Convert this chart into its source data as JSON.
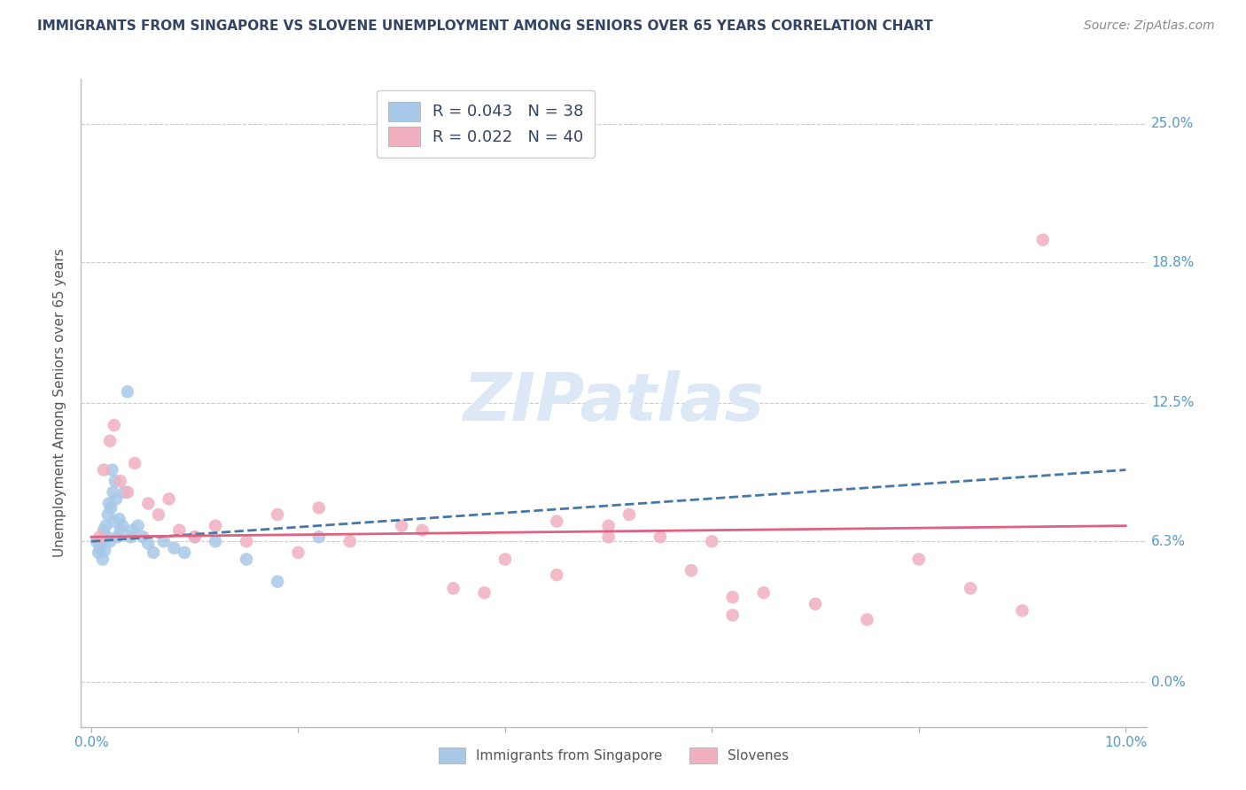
{
  "title": "IMMIGRANTS FROM SINGAPORE VS SLOVENE UNEMPLOYMENT AMONG SENIORS OVER 65 YEARS CORRELATION CHART",
  "source": "Source: ZipAtlas.com",
  "ylabel": "Unemployment Among Seniors over 65 years",
  "ytick_labels": [
    "0.0%",
    "6.3%",
    "12.5%",
    "18.8%",
    "25.0%"
  ],
  "ytick_values": [
    0.0,
    6.3,
    12.5,
    18.8,
    25.0
  ],
  "color_blue": "#a8c8e8",
  "color_blue_line": "#4477aa",
  "color_pink": "#f0b0c0",
  "color_pink_line": "#e06080",
  "color_label": "#5599cc",
  "watermark": "ZIPatlas",
  "legend_entry1": "R = 0.043   N = 38",
  "legend_entry2": "R = 0.022   N = 40",
  "legend_label1": "Immigrants from Singapore",
  "legend_label2": "Slovenes",
  "singapore_x": [
    0.05,
    0.07,
    0.08,
    0.1,
    0.11,
    0.12,
    0.13,
    0.14,
    0.15,
    0.16,
    0.17,
    0.18,
    0.19,
    0.2,
    0.21,
    0.22,
    0.23,
    0.24,
    0.25,
    0.27,
    0.28,
    0.3,
    0.32,
    0.35,
    0.38,
    0.4,
    0.45,
    0.5,
    0.55,
    0.6,
    0.7,
    0.8,
    0.9,
    1.0,
    1.2,
    1.5,
    1.8,
    2.2
  ],
  "singapore_y": [
    6.3,
    5.8,
    6.0,
    6.2,
    5.5,
    6.8,
    5.9,
    7.0,
    6.5,
    7.5,
    8.0,
    6.3,
    7.8,
    9.5,
    8.5,
    7.2,
    9.0,
    8.2,
    6.5,
    7.3,
    6.8,
    7.0,
    8.5,
    13.0,
    6.5,
    6.8,
    7.0,
    6.5,
    6.2,
    5.8,
    6.3,
    6.0,
    5.8,
    6.5,
    6.3,
    5.5,
    4.5,
    6.5
  ],
  "slovene_x": [
    0.08,
    0.12,
    0.18,
    0.22,
    0.28,
    0.35,
    0.42,
    0.55,
    0.65,
    0.75,
    0.85,
    1.0,
    1.2,
    1.5,
    1.8,
    2.0,
    2.2,
    2.5,
    3.0,
    3.2,
    3.5,
    4.0,
    4.5,
    5.0,
    5.2,
    5.5,
    5.8,
    6.0,
    6.2,
    6.5,
    7.0,
    7.5,
    8.0,
    8.5,
    9.0,
    9.2,
    5.0,
    4.5,
    3.8,
    6.2
  ],
  "slovene_y": [
    6.5,
    9.5,
    10.8,
    11.5,
    9.0,
    8.5,
    9.8,
    8.0,
    7.5,
    8.2,
    6.8,
    6.5,
    7.0,
    6.3,
    7.5,
    5.8,
    7.8,
    6.3,
    7.0,
    6.8,
    4.2,
    5.5,
    7.2,
    7.0,
    7.5,
    6.5,
    5.0,
    6.3,
    3.8,
    4.0,
    3.5,
    2.8,
    5.5,
    4.2,
    3.2,
    19.8,
    6.5,
    4.8,
    4.0,
    3.0
  ]
}
